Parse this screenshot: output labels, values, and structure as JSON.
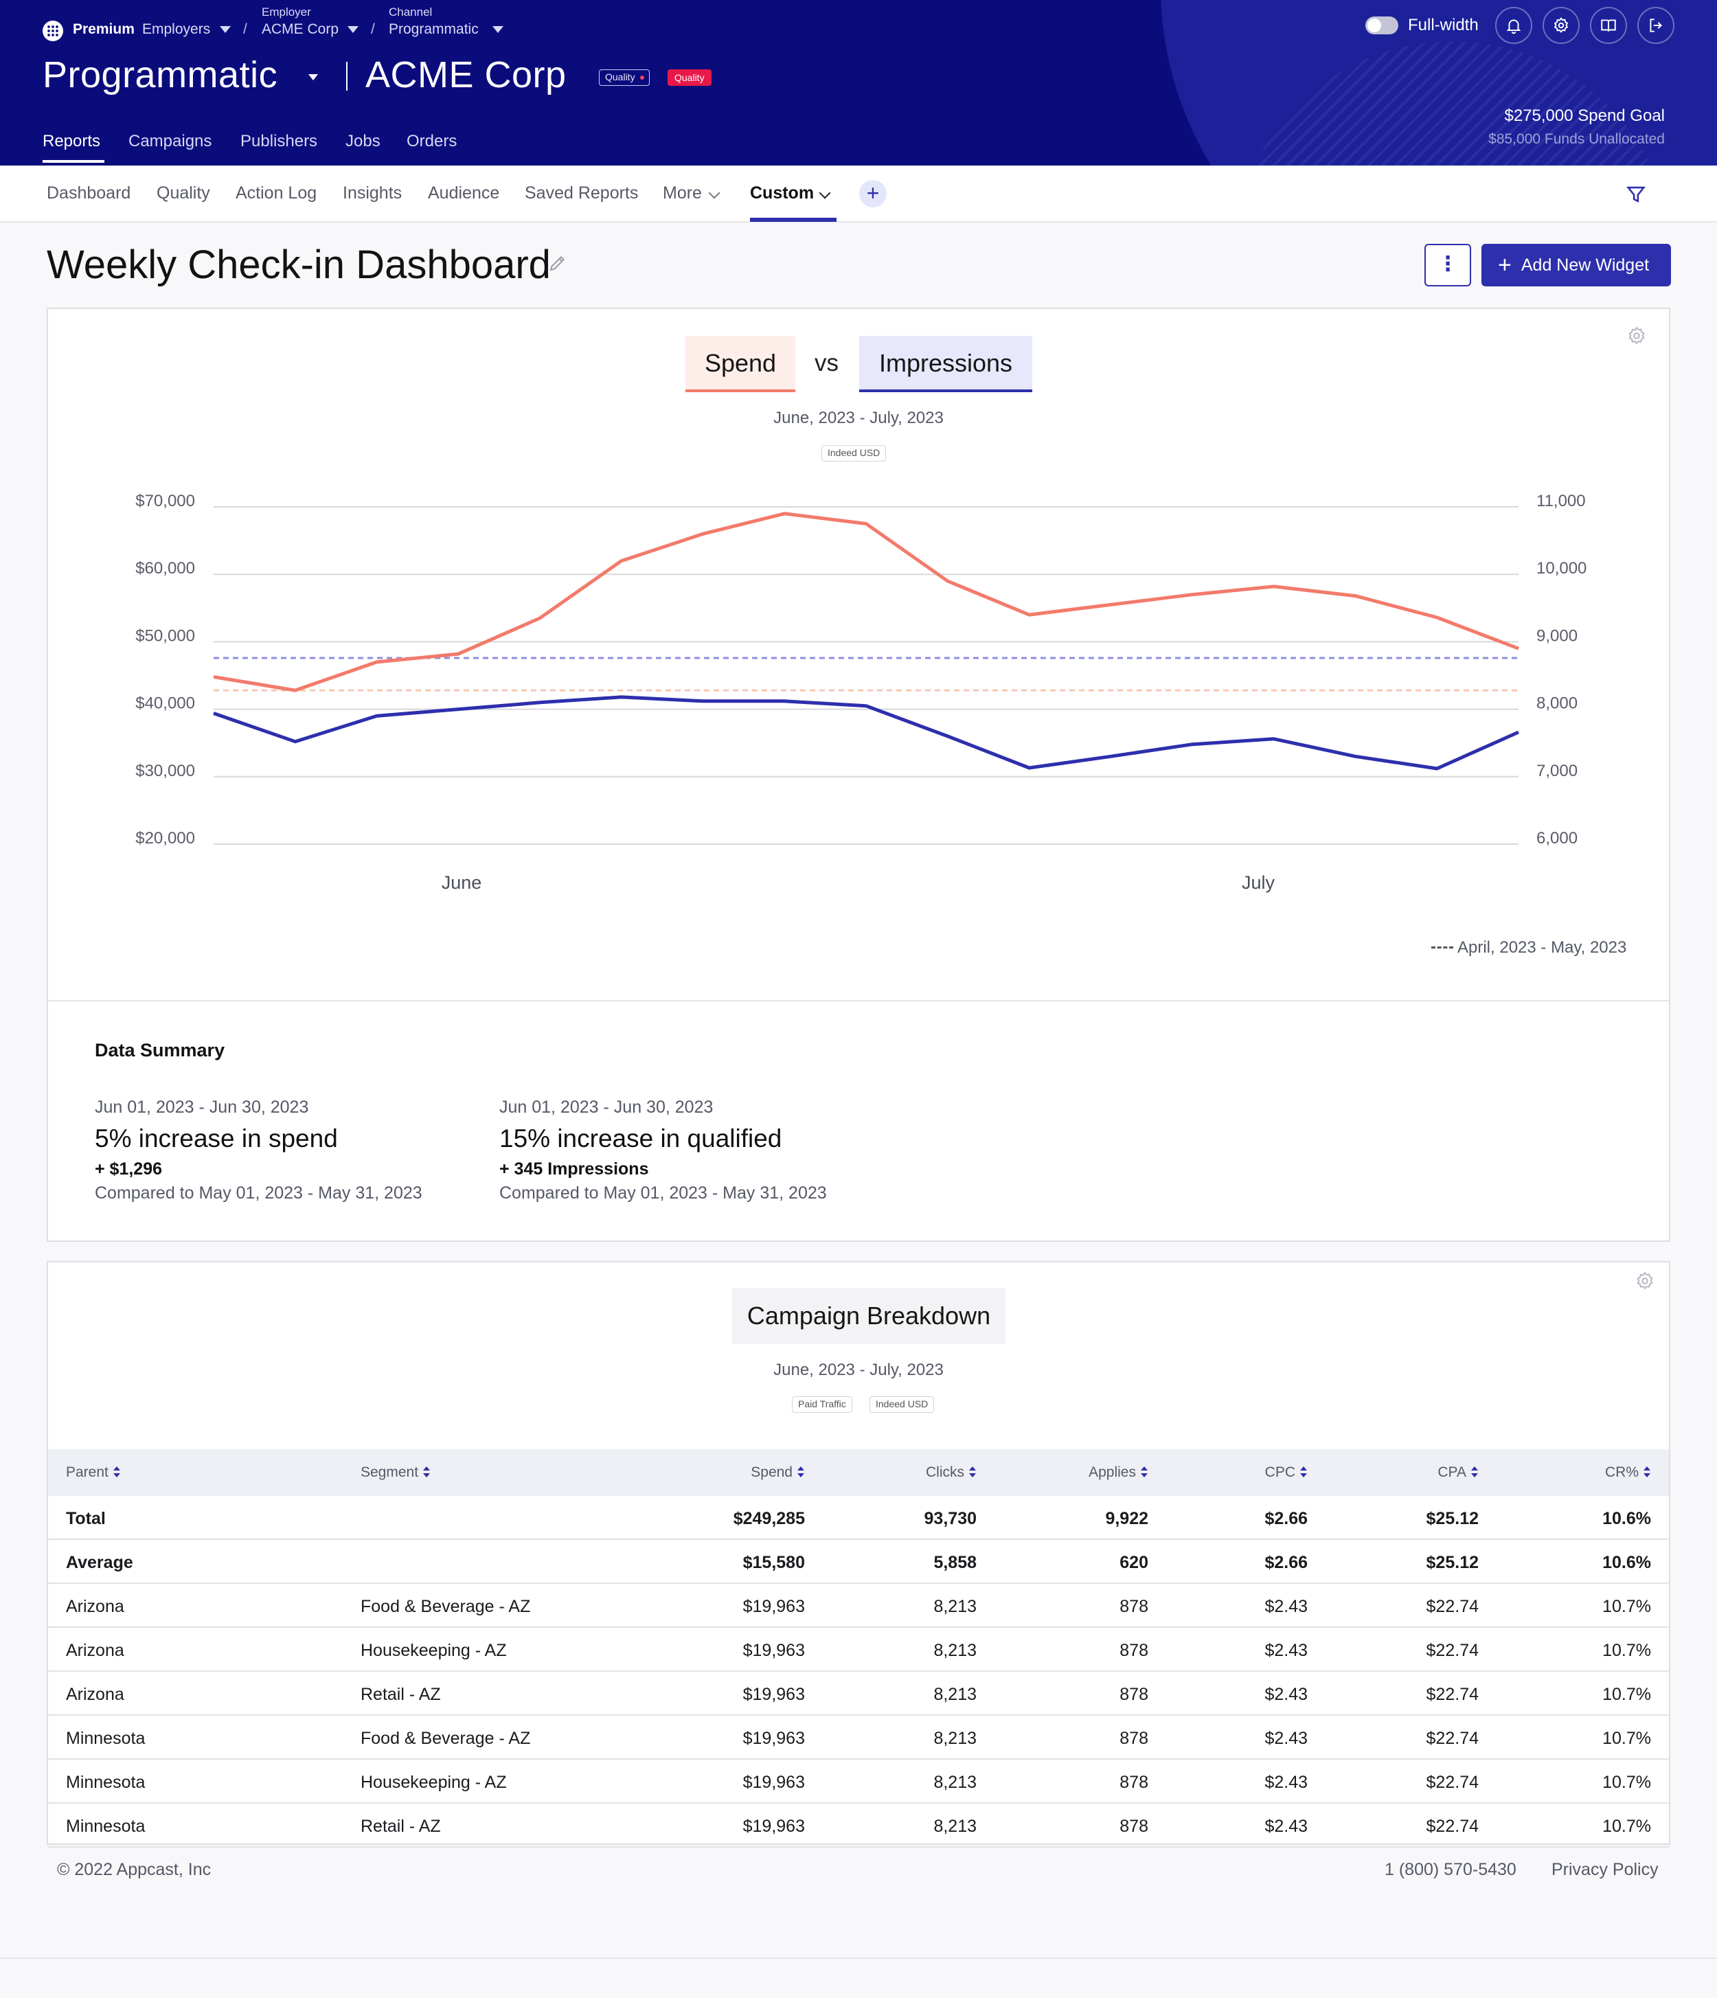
{
  "header": {
    "premium": "Premium",
    "breadcrumb": {
      "employers": "Employers",
      "employer_label": "Employer",
      "employer_value": "ACME Corp",
      "channel_label": "Channel",
      "channel_value": "Programmatic",
      "sep": "/"
    },
    "app_title": "Programmatic",
    "client_title": "ACME Corp",
    "badge_outline": "Quality",
    "badge_red": "Quality",
    "nav": [
      "Reports",
      "Campaigns",
      "Publishers",
      "Jobs",
      "Orders"
    ],
    "fullwidth_label": "Full-width",
    "spend_goal": "$275,000 Spend Goal",
    "funds_unallocated": "$85,000 Funds Unallocated",
    "icons": [
      "bell-icon",
      "settings-icon",
      "book-icon",
      "logout-icon"
    ]
  },
  "subnav": {
    "items": [
      "Dashboard",
      "Quality",
      "Action Log",
      "Insights",
      "Audience",
      "Saved Reports",
      "More",
      "Custom"
    ],
    "plus": "+"
  },
  "page": {
    "title": "Weekly Check-in Dashboard",
    "kebab": "⋮",
    "add_widget": "Add New Widget"
  },
  "chart_widget": {
    "chip_spend": "Spend",
    "vs": "vs",
    "chip_impressions": "Impressions",
    "date_range": "June, 2023 - July, 2023",
    "tag": "Indeed USD",
    "previous_period": "April, 2023 - May, 2023",
    "colors": {
      "spend": "#f37a6b",
      "impressions": "#2d2fac",
      "spend_prev": "#f5c9b0",
      "impressions_prev": "#8f8fe0"
    }
  },
  "chart_data": {
    "type": "line",
    "x_labels": [
      "June",
      "July"
    ],
    "y_left_ticks": [
      "$70,000",
      "$60,000",
      "$50,000",
      "$40,000",
      "$30,000",
      "$20,000"
    ],
    "y_right_ticks": [
      "11,000",
      "10,000",
      "9,000",
      "8,000",
      "7,000",
      "6,000"
    ],
    "ylim_left": [
      20000,
      70000
    ],
    "ylim_right": [
      6000,
      11000
    ],
    "x": [
      0,
      1,
      2,
      3,
      4,
      5,
      6,
      7,
      8,
      9,
      10,
      11,
      12,
      13,
      14,
      15,
      16
    ],
    "series": [
      {
        "name": "Spend",
        "axis": "left",
        "values": [
          44800,
          42800,
          47000,
          48200,
          53500,
          62000,
          66000,
          69000,
          67500,
          59000,
          54000,
          55500,
          57000,
          58200,
          56800,
          53600,
          49000
        ]
      },
      {
        "name": "Impressions",
        "axis": "right",
        "values": [
          7940,
          7520,
          7900,
          8000,
          8100,
          8180,
          8120,
          8120,
          8050,
          7600,
          7130,
          7300,
          7480,
          7560,
          7300,
          7120,
          7660
        ]
      }
    ],
    "reference_lines": [
      {
        "name": "April, 2023 - May, 2023",
        "axis": "left",
        "value": 42800,
        "style": "dashed"
      },
      {
        "name": "April, 2023 - May, 2023",
        "axis": "right",
        "value": 8760,
        "style": "dashed"
      }
    ],
    "grid": true
  },
  "summary": {
    "title": "Data Summary",
    "items": [
      {
        "date": "Jun 01, 2023 - Jun 30, 2023",
        "headline": "5% increase in spend",
        "delta": "+ $1,296",
        "compare": "Compared to May 01, 2023 - May 31, 2023"
      },
      {
        "date": "Jun 01, 2023 - Jun 30, 2023",
        "headline": "15% increase in qualified",
        "delta": "+ 345 Impressions",
        "compare": "Compared to May 01, 2023 - May 31, 2023"
      }
    ]
  },
  "campaign_widget": {
    "title": "Campaign Breakdown",
    "date_range": "June, 2023 - July, 2023",
    "tags": [
      "Paid Traffic",
      "Indeed USD"
    ],
    "columns": [
      "Parent",
      "Segment",
      "Spend",
      "Clicks",
      "Applies",
      "CPC",
      "CPA",
      "CR%"
    ],
    "rows": [
      [
        "Total",
        "",
        "$249,285",
        "93,730",
        "9,922",
        "$2.66",
        "$25.12",
        "10.6%"
      ],
      [
        "Average",
        "",
        "$15,580",
        "5,858",
        "620",
        "$2.66",
        "$25.12",
        "10.6%"
      ],
      [
        "Arizona",
        "Food & Beverage - AZ",
        "$19,963",
        "8,213",
        "878",
        "$2.43",
        "$22.74",
        "10.7%"
      ],
      [
        "Arizona",
        "Housekeeping - AZ",
        "$19,963",
        "8,213",
        "878",
        "$2.43",
        "$22.74",
        "10.7%"
      ],
      [
        "Arizona",
        "Retail - AZ",
        "$19,963",
        "8,213",
        "878",
        "$2.43",
        "$22.74",
        "10.7%"
      ],
      [
        "Minnesota",
        "Food & Beverage - AZ",
        "$19,963",
        "8,213",
        "878",
        "$2.43",
        "$22.74",
        "10.7%"
      ],
      [
        "Minnesota",
        "Housekeeping - AZ",
        "$19,963",
        "8,213",
        "878",
        "$2.43",
        "$22.74",
        "10.7%"
      ],
      [
        "Minnesota",
        "Retail - AZ",
        "$19,963",
        "8,213",
        "878",
        "$2.43",
        "$22.74",
        "10.7%"
      ]
    ]
  },
  "footer": {
    "copyright": "© 2022 Appcast, Inc",
    "phone": "1 (800) 570-5430",
    "privacy": "Privacy Policy"
  }
}
